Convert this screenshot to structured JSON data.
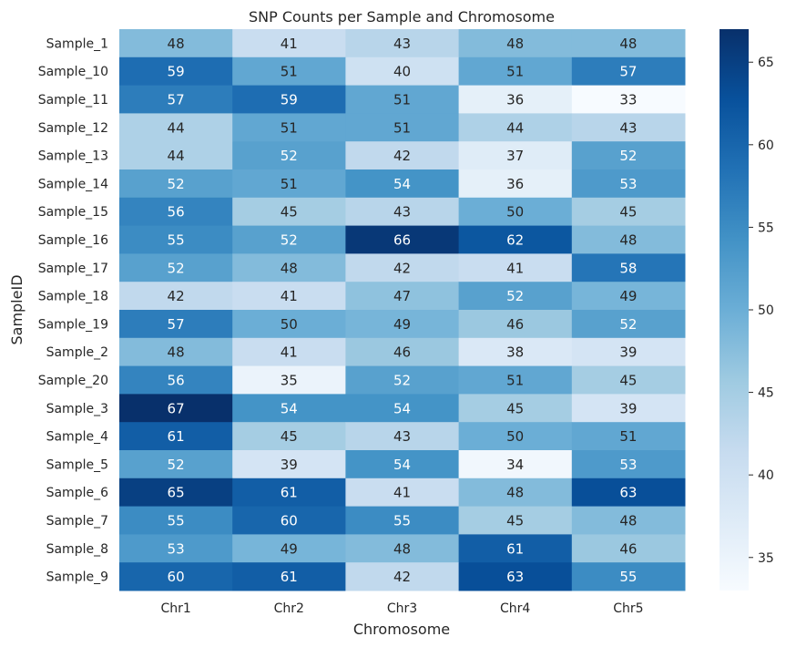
{
  "chart_data": {
    "type": "heatmap",
    "title": "SNP Counts per Sample and Chromosome",
    "xlabel": "Chromosome",
    "ylabel": "SampleID",
    "x_categories": [
      "Chr1",
      "Chr2",
      "Chr3",
      "Chr4",
      "Chr5"
    ],
    "y_categories": [
      "Sample_1",
      "Sample_10",
      "Sample_11",
      "Sample_12",
      "Sample_13",
      "Sample_14",
      "Sample_15",
      "Sample_16",
      "Sample_17",
      "Sample_18",
      "Sample_19",
      "Sample_2",
      "Sample_20",
      "Sample_3",
      "Sample_4",
      "Sample_5",
      "Sample_6",
      "Sample_7",
      "Sample_8",
      "Sample_9"
    ],
    "values": [
      [
        48,
        41,
        43,
        48,
        48
      ],
      [
        59,
        51,
        40,
        51,
        57
      ],
      [
        57,
        59,
        51,
        36,
        33
      ],
      [
        44,
        51,
        51,
        44,
        43
      ],
      [
        44,
        52,
        42,
        37,
        52
      ],
      [
        52,
        51,
        54,
        36,
        53
      ],
      [
        56,
        45,
        43,
        50,
        45
      ],
      [
        55,
        52,
        66,
        62,
        48
      ],
      [
        52,
        48,
        42,
        41,
        58
      ],
      [
        42,
        41,
        47,
        52,
        49
      ],
      [
        57,
        50,
        49,
        46,
        52
      ],
      [
        48,
        41,
        46,
        38,
        39
      ],
      [
        56,
        35,
        52,
        51,
        45
      ],
      [
        67,
        54,
        54,
        45,
        39
      ],
      [
        61,
        45,
        43,
        50,
        51
      ],
      [
        52,
        39,
        54,
        34,
        53
      ],
      [
        65,
        61,
        41,
        48,
        63
      ],
      [
        55,
        60,
        55,
        45,
        48
      ],
      [
        53,
        49,
        48,
        61,
        46
      ],
      [
        60,
        61,
        42,
        63,
        55
      ]
    ],
    "colormap": "Blues",
    "vmin": 33,
    "vmax": 67,
    "colorbar_ticks": [
      35,
      40,
      45,
      50,
      55,
      60,
      65
    ],
    "annotations": true
  }
}
